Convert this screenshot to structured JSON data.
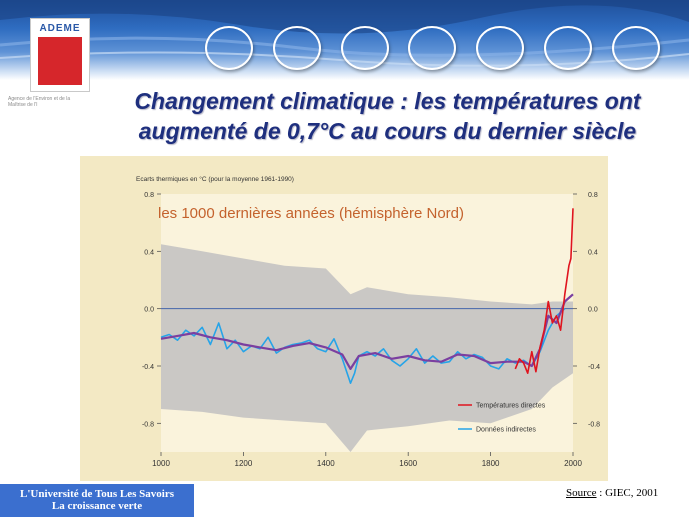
{
  "header": {
    "logo_text": "ADEME",
    "agency_line": "Agence de l'Environ et de la Maîtrise de l'I",
    "theme_icons": [
      {
        "name": "transport-icon",
        "color": "#2f7d3a"
      },
      {
        "name": "france-map-icon",
        "color": "#3a8a3a"
      },
      {
        "name": "planet-icon",
        "color": "#1f4f9a"
      },
      {
        "name": "house-icon",
        "color": "#3f8f3f"
      },
      {
        "name": "factory-icon",
        "color": "#2b7fb8"
      },
      {
        "name": "wave-icon",
        "color": "#2f8fc0"
      },
      {
        "name": "hammer-icon",
        "color": "#7a3b6a"
      }
    ]
  },
  "title": {
    "line1": "Changement climatique : les températures ont",
    "line2": "augmenté de 0,7°C au cours du dernier siècle"
  },
  "footer": {
    "line1": "L'Université de Tous Les Savoirs",
    "line2": "La croissance verte",
    "source_label": "Source",
    "source_text": " : GIEC, 2001"
  },
  "chart_data": {
    "type": "line",
    "title": "les 1000 dernières années (hémisphère Nord)",
    "ylabel": "Ecarts thermiques en °C (pour la moyenne 1961-1990)",
    "xlabel": "",
    "xlim": [
      1000,
      2000
    ],
    "ylim": [
      -1.0,
      0.8
    ],
    "x_ticks": [
      "1000",
      "1200",
      "1400",
      "1600",
      "1800",
      "2000"
    ],
    "y_ticks_left": [
      "0.8",
      "0.4",
      "0.0",
      "-0.4",
      "-0.8"
    ],
    "y_ticks_right": [
      "0.8",
      "0.4",
      "0.0",
      "-0.4",
      "-0.8"
    ],
    "colors": {
      "panel": "#faf3dc",
      "title": "#c4622d",
      "uncertainty": "#b9b9be",
      "indirect": "#26a4e8",
      "smoothed": "#7b3fa0",
      "direct": "#e0141e",
      "zero_line": "#4466aa"
    },
    "legend": [
      {
        "label": "Températures directes",
        "color": "#e0141e"
      },
      {
        "label": "Données indirectes",
        "color": "#26a4e8"
      }
    ],
    "legend_position": "bottom-right",
    "series": [
      {
        "name": "Données indirectes",
        "kind": "reconstruction",
        "x": [
          1000,
          1020,
          1040,
          1060,
          1080,
          1100,
          1120,
          1140,
          1160,
          1180,
          1200,
          1220,
          1240,
          1260,
          1280,
          1300,
          1320,
          1340,
          1360,
          1380,
          1400,
          1420,
          1440,
          1460,
          1470,
          1480,
          1500,
          1520,
          1540,
          1560,
          1580,
          1600,
          1620,
          1640,
          1660,
          1680,
          1700,
          1720,
          1740,
          1760,
          1780,
          1800,
          1820,
          1840,
          1860,
          1880,
          1900,
          1920,
          1940,
          1960,
          1980
        ],
        "y": [
          -0.2,
          -0.18,
          -0.22,
          -0.15,
          -0.19,
          -0.13,
          -0.25,
          -0.1,
          -0.28,
          -0.22,
          -0.3,
          -0.26,
          -0.28,
          -0.2,
          -0.31,
          -0.27,
          -0.25,
          -0.24,
          -0.22,
          -0.28,
          -0.3,
          -0.21,
          -0.35,
          -0.52,
          -0.45,
          -0.33,
          -0.3,
          -0.33,
          -0.28,
          -0.36,
          -0.4,
          -0.35,
          -0.28,
          -0.38,
          -0.33,
          -0.38,
          -0.37,
          -0.3,
          -0.35,
          -0.32,
          -0.34,
          -0.4,
          -0.42,
          -0.35,
          -0.38,
          -0.36,
          -0.4,
          -0.3,
          -0.15,
          -0.05,
          0.0
        ]
      },
      {
        "name": "",
        "kind": "smoothed",
        "x": [
          1000,
          1040,
          1080,
          1120,
          1160,
          1200,
          1240,
          1280,
          1320,
          1360,
          1400,
          1440,
          1460,
          1480,
          1520,
          1560,
          1600,
          1640,
          1680,
          1720,
          1760,
          1800,
          1840,
          1880,
          1900,
          1920,
          1940,
          1960,
          1980,
          2000
        ],
        "y": [
          -0.21,
          -0.19,
          -0.17,
          -0.2,
          -0.22,
          -0.25,
          -0.27,
          -0.29,
          -0.26,
          -0.24,
          -0.27,
          -0.32,
          -0.42,
          -0.33,
          -0.31,
          -0.35,
          -0.33,
          -0.36,
          -0.37,
          -0.32,
          -0.33,
          -0.38,
          -0.37,
          -0.37,
          -0.4,
          -0.28,
          -0.05,
          -0.1,
          0.05,
          0.1
        ]
      },
      {
        "name": "Températures directes",
        "kind": "instrumental",
        "x": [
          1860,
          1870,
          1880,
          1890,
          1900,
          1910,
          1920,
          1930,
          1940,
          1950,
          1960,
          1970,
          1980,
          1990,
          1995,
          2000
        ],
        "y": [
          -0.42,
          -0.35,
          -0.38,
          -0.45,
          -0.3,
          -0.44,
          -0.27,
          -0.15,
          0.05,
          -0.1,
          -0.05,
          -0.15,
          0.1,
          0.3,
          0.35,
          0.7
        ]
      }
    ],
    "uncertainty_band": {
      "x": [
        1000,
        1100,
        1200,
        1300,
        1400,
        1460,
        1500,
        1600,
        1700,
        1800,
        1900,
        1950,
        2000
      ],
      "upper": [
        0.45,
        0.4,
        0.35,
        0.3,
        0.28,
        0.1,
        0.15,
        0.1,
        0.08,
        0.05,
        0.03,
        0.05,
        0.05
      ],
      "lower": [
        -0.7,
        -0.72,
        -0.76,
        -0.78,
        -0.8,
        -1.0,
        -0.85,
        -0.82,
        -0.78,
        -0.8,
        -0.7,
        -0.55,
        -0.45
      ]
    }
  }
}
